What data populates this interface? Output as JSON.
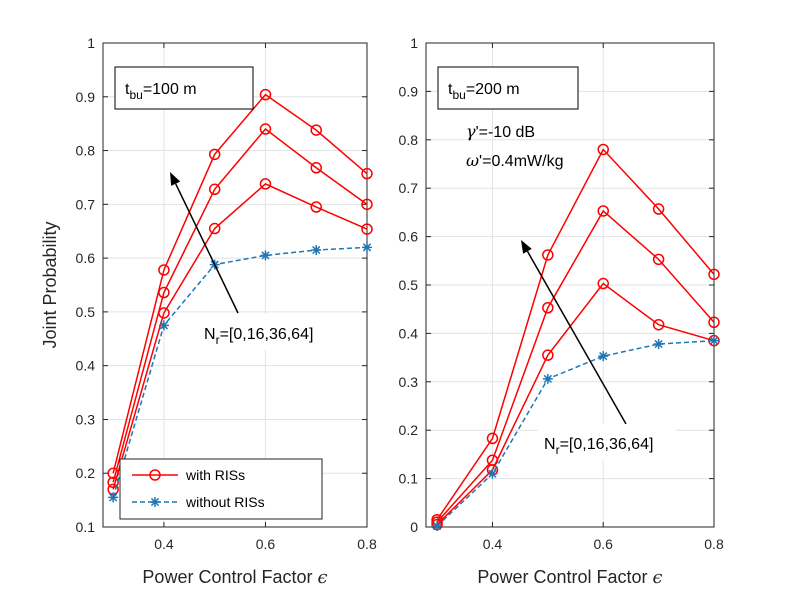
{
  "chart_data": [
    {
      "type": "line",
      "x": [
        0.3,
        0.4,
        0.5,
        0.6,
        0.7,
        0.8
      ],
      "xlabel_text": "Power Control Factor",
      "xlabel_symbol": "ϵ",
      "ylabel": "Joint Probability",
      "xlim": [
        0.28,
        0.8
      ],
      "ylim": [
        0.1,
        1.0
      ],
      "xticks": [
        "0.4",
        "0.6",
        "0.8"
      ],
      "xtick_values": [
        0.4,
        0.6,
        0.8
      ],
      "yticks": [
        "0.1",
        "0.2",
        "0.3",
        "0.4",
        "0.5",
        "0.6",
        "0.7",
        "0.8",
        "0.9",
        "1"
      ],
      "ytick_values": [
        0.1,
        0.2,
        0.3,
        0.4,
        0.5,
        0.6,
        0.7,
        0.8,
        0.9,
        1.0
      ],
      "grid": true,
      "box_label": {
        "main": "t",
        "sub": "bu",
        "rest": "=100 m"
      },
      "annotation": {
        "main": "N",
        "sub": "r",
        "rest": "=[0,16,36,64]"
      },
      "series": [
        {
          "name": "with RISs (N_r=64)",
          "style": "solid-circle",
          "color": "#ff0000",
          "values": [
            0.2,
            0.578,
            0.793,
            0.904,
            0.838,
            0.757
          ]
        },
        {
          "name": "with RISs (N_r=36)",
          "style": "solid-circle",
          "color": "#ff0000",
          "values": [
            0.183,
            0.536,
            0.728,
            0.84,
            0.768,
            0.7
          ]
        },
        {
          "name": "with RISs (N_r=16)",
          "style": "solid-circle",
          "color": "#ff0000",
          "values": [
            0.17,
            0.498,
            0.655,
            0.738,
            0.695,
            0.654
          ]
        },
        {
          "name": "without RISs",
          "style": "dashed-star",
          "color": "#1f77b4",
          "values": [
            0.155,
            0.475,
            0.588,
            0.605,
            0.615,
            0.62
          ]
        }
      ],
      "legend": {
        "position": "bottom-left",
        "entries": [
          {
            "label": "with RISs",
            "style": "solid-circle",
            "color": "#ff0000"
          },
          {
            "label": "without RISs",
            "style": "dashed-star",
            "color": "#1f77b4"
          }
        ]
      }
    },
    {
      "type": "line",
      "x": [
        0.3,
        0.4,
        0.5,
        0.6,
        0.7,
        0.8
      ],
      "xlabel_text": "Power Control Factor",
      "xlabel_symbol": "ϵ",
      "ylabel": "",
      "xlim": [
        0.28,
        0.8
      ],
      "ylim": [
        0.0,
        1.0
      ],
      "xticks": [
        "0.4",
        "0.6",
        "0.8"
      ],
      "xtick_values": [
        0.4,
        0.6,
        0.8
      ],
      "yticks": [
        "0",
        "0.1",
        "0.2",
        "0.3",
        "0.4",
        "0.5",
        "0.6",
        "0.7",
        "0.8",
        "0.9",
        "1"
      ],
      "ytick_values": [
        0.0,
        0.1,
        0.2,
        0.3,
        0.4,
        0.5,
        0.6,
        0.7,
        0.8,
        0.9,
        1.0
      ],
      "grid": true,
      "box_label": {
        "main": "t",
        "sub": "bu",
        "rest": "=200 m"
      },
      "param_lines": [
        {
          "sym": "γ",
          "rest": "'=-10 dB"
        },
        {
          "sym": "ω",
          "rest": "'=0.4mW/kg"
        }
      ],
      "annotation": {
        "main": "N",
        "sub": "r",
        "rest": "=[0,16,36,64]"
      },
      "series": [
        {
          "name": "with RISs (N_r=64)",
          "style": "solid-circle",
          "color": "#ff0000",
          "values": [
            0.015,
            0.183,
            0.562,
            0.78,
            0.657,
            0.522
          ]
        },
        {
          "name": "with RISs (N_r=36)",
          "style": "solid-circle",
          "color": "#ff0000",
          "values": [
            0.01,
            0.138,
            0.453,
            0.653,
            0.553,
            0.423
          ]
        },
        {
          "name": "with RISs (N_r=16)",
          "style": "solid-circle",
          "color": "#ff0000",
          "values": [
            0.005,
            0.118,
            0.355,
            0.503,
            0.418,
            0.385
          ]
        },
        {
          "name": "without RISs",
          "style": "dashed-star",
          "color": "#1f77b4",
          "values": [
            0.002,
            0.11,
            0.306,
            0.353,
            0.378,
            0.385
          ]
        }
      ]
    }
  ]
}
